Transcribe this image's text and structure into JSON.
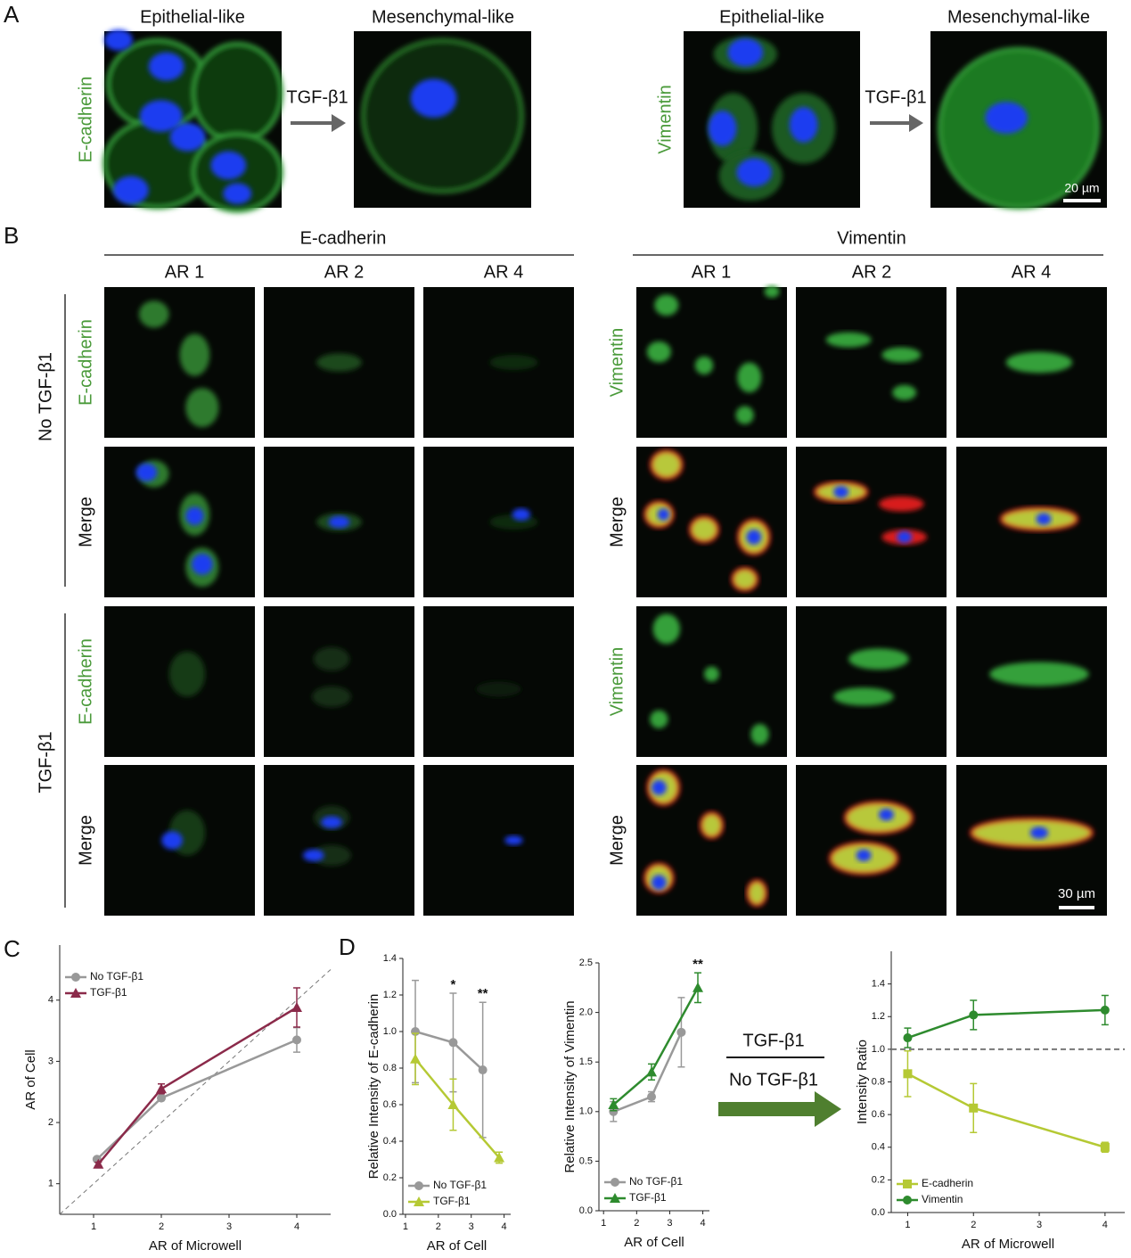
{
  "panel_labels": [
    "A",
    "B",
    "C",
    "D"
  ],
  "panel_a": {
    "image_titles": [
      "Epithelial-like",
      "Mesenchymal-like",
      "Epithelial-like",
      "Mesenchymal-like"
    ],
    "treatment": [
      "TGF-β1",
      "TGF-β1"
    ],
    "stains": [
      "E-cadherin",
      "Vimentin"
    ],
    "scale_bar": "20 µm"
  },
  "panel_b": {
    "groups": [
      "E-cadherin",
      "Vimentin"
    ],
    "columns": [
      "AR 1",
      "AR 2",
      "AR 4",
      "AR 1",
      "AR 2",
      "AR 4"
    ],
    "conditions": [
      "No TGF-β1",
      "TGF-β1"
    ],
    "row_labels": [
      [
        "E-cadherin",
        "Merge",
        "E-cadherin",
        "Merge"
      ],
      [
        "Vimentin",
        "Merge",
        "Vimentin",
        "Merge"
      ]
    ],
    "scale_bar": "30 µm"
  },
  "ratio": {
    "numerator": "TGF-β1",
    "denominator": "No TGF-β1"
  },
  "chart_data": [
    {
      "type": "line",
      "xlabel": "AR of Microwell",
      "ylabel": "AR of Cell",
      "xlim": [
        0.5,
        4.5
      ],
      "ylim": [
        0.5,
        4.9
      ],
      "xticks": [
        1,
        2,
        3,
        4
      ],
      "yticks": [
        1,
        2,
        3,
        4
      ],
      "identity_line": true,
      "legend": "upper left",
      "series": [
        {
          "name": "No TGF-β1",
          "color": "#999999",
          "marker": "circle",
          "x": [
            1.05,
            2,
            4
          ],
          "values": [
            1.4,
            2.4,
            3.35
          ],
          "errors": [
            0.03,
            0.03,
            0.2
          ]
        },
        {
          "name": "TGF-β1",
          "color": "#8b2a4a",
          "marker": "triangle",
          "x": [
            1.07,
            2,
            4
          ],
          "values": [
            1.32,
            2.55,
            3.88
          ],
          "errors": [
            0.03,
            0.08,
            0.32
          ]
        }
      ]
    },
    {
      "type": "line",
      "xlabel": "AR of Cell",
      "ylabel": "Relative Intensity of E-cadherin",
      "xlim": [
        0.92,
        4.2
      ],
      "ylim": [
        0,
        1.4
      ],
      "xticks": [
        1,
        2,
        3,
        4
      ],
      "yticks": [
        {
          "value": 0,
          "label": "0.0"
        },
        {
          "value": 0.2,
          "label": "0.2"
        },
        {
          "value": 0.4,
          "label": "0.4"
        },
        {
          "value": 0.6,
          "label": "0.6"
        },
        {
          "value": 0.8,
          "label": "0.8"
        },
        {
          "value": 1,
          "label": "1.0"
        },
        {
          "value": 1.2,
          "label": "1.2"
        },
        {
          "value": 1.4,
          "label": "1.4"
        }
      ],
      "legend": "lower left",
      "annotations": [
        {
          "text": "*",
          "x": 2.45
        },
        {
          "text": "**",
          "x": 3.35
        }
      ],
      "series": [
        {
          "name": "No TGF-β1",
          "color": "#999999",
          "marker": "circle",
          "x": [
            1.3,
            2.45,
            3.35
          ],
          "values": [
            1.0,
            0.94,
            0.79
          ],
          "errors": [
            0.28,
            0.27,
            0.37
          ]
        },
        {
          "name": "TGF-β1",
          "color": "#b5c934",
          "marker": "triangle",
          "x": [
            1.3,
            2.45,
            3.85
          ],
          "values": [
            0.85,
            0.6,
            0.31
          ],
          "errors": [
            0.14,
            0.14,
            0.03
          ]
        }
      ]
    },
    {
      "type": "line",
      "xlabel": "AR of Cell",
      "ylabel": "Relative Intensity of Vimentin",
      "xlim": [
        0.86,
        4.2
      ],
      "ylim": [
        0,
        2.5
      ],
      "xticks": [
        1,
        2,
        3,
        4
      ],
      "yticks": [
        {
          "value": 0,
          "label": "0.0"
        },
        {
          "value": 0.5,
          "label": "0.5"
        },
        {
          "value": 1,
          "label": "1.0"
        },
        {
          "value": 1.5,
          "label": "1.5"
        },
        {
          "value": 2,
          "label": "2.0"
        },
        {
          "value": 2.5,
          "label": "2.5"
        }
      ],
      "legend": "lower left",
      "annotations": [
        {
          "text": "**",
          "x": 3.85
        }
      ],
      "series": [
        {
          "name": "No TGF-β1",
          "color": "#999999",
          "marker": "circle",
          "x": [
            1.3,
            2.45,
            3.35
          ],
          "values": [
            1.0,
            1.15,
            1.8
          ],
          "errors": [
            0.1,
            0.05,
            0.35
          ]
        },
        {
          "name": "TGF-β1",
          "color": "#2e8b2e",
          "marker": "triangle",
          "x": [
            1.3,
            2.45,
            3.85
          ],
          "values": [
            1.07,
            1.4,
            2.25
          ],
          "errors": [
            0.06,
            0.08,
            0.15
          ]
        }
      ]
    },
    {
      "type": "line",
      "xlabel": "AR of Microwell",
      "ylabel": "Intensity Ratio",
      "xlim": [
        0.75,
        4.3
      ],
      "ylim": [
        0,
        1.6
      ],
      "xticks": [
        1,
        2,
        3,
        4
      ],
      "yticks": [
        {
          "value": 0,
          "label": "0.0"
        },
        {
          "value": 0.2,
          "label": "0.2"
        },
        {
          "value": 0.4,
          "label": "0.4"
        },
        {
          "value": 0.6,
          "label": "0.6"
        },
        {
          "value": 0.8,
          "label": "0.8"
        },
        {
          "value": 1,
          "label": "1.0"
        },
        {
          "value": 1.2,
          "label": "1.2"
        },
        {
          "value": 1.4,
          "label": "1.4"
        }
      ],
      "hline": 1.0,
      "legend": "lower left",
      "series": [
        {
          "name": "E-cadherin",
          "color": "#b5c934",
          "marker": "square",
          "x": [
            1,
            2,
            4
          ],
          "values": [
            0.85,
            0.64,
            0.4
          ],
          "errors": [
            0.14,
            0.15,
            0.03
          ]
        },
        {
          "name": "Vimentin",
          "color": "#2e8b2e",
          "marker": "circle",
          "x": [
            1,
            2,
            4
          ],
          "values": [
            1.07,
            1.21,
            1.24
          ],
          "errors": [
            0.06,
            0.09,
            0.09
          ]
        }
      ]
    }
  ]
}
